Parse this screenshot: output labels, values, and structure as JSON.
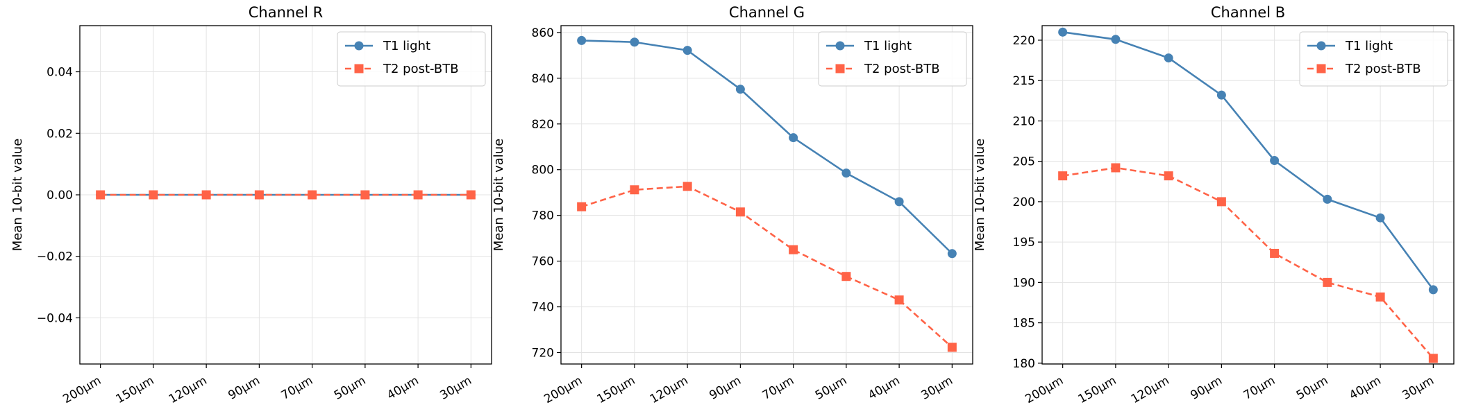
{
  "chart_data": [
    {
      "type": "line",
      "title": "Channel R",
      "ylabel": "Mean 10-bit value",
      "categories": [
        "200μm",
        "150μm",
        "120μm",
        "90μm",
        "70μm",
        "50μm",
        "40μm",
        "30μm"
      ],
      "ylim": [
        -0.055,
        0.055
      ],
      "yticks": [
        -0.04,
        -0.02,
        0.0,
        0.02,
        0.04
      ],
      "ytick_labels": [
        "−0.04",
        "−0.02",
        "0.00",
        "0.02",
        "0.04"
      ],
      "series": [
        {
          "name": "T1 light",
          "values": [
            0,
            0,
            0,
            0,
            0,
            0,
            0,
            0
          ]
        },
        {
          "name": "T2 post-BTB",
          "values": [
            0,
            0,
            0,
            0,
            0,
            0,
            0,
            0
          ]
        }
      ],
      "grid": true,
      "legend": "top-right"
    },
    {
      "type": "line",
      "title": "Channel G",
      "ylabel": "Mean 10-bit value",
      "categories": [
        "200μm",
        "150μm",
        "120μm",
        "90μm",
        "70μm",
        "50μm",
        "40μm",
        "30μm"
      ],
      "ylim": [
        715,
        863
      ],
      "yticks": [
        720,
        740,
        760,
        780,
        800,
        820,
        840,
        860
      ],
      "ytick_labels": [
        "720",
        "740",
        "760",
        "780",
        "800",
        "820",
        "840",
        "860"
      ],
      "series": [
        {
          "name": "T1 light",
          "values": [
            856.5,
            855.8,
            852.2,
            835.2,
            814.0,
            798.5,
            786.0,
            763.3
          ]
        },
        {
          "name": "T2 post-BTB",
          "values": [
            783.8,
            791.2,
            792.7,
            781.5,
            765.0,
            753.3,
            743.0,
            722.3
          ]
        }
      ],
      "grid": true,
      "legend": "top-right"
    },
    {
      "type": "line",
      "title": "Channel B",
      "ylabel": "Mean 10-bit value",
      "categories": [
        "200μm",
        "150μm",
        "120μm",
        "90μm",
        "70μm",
        "50μm",
        "40μm",
        "30μm"
      ],
      "ylim": [
        179.9,
        221.8
      ],
      "yticks": [
        180,
        185,
        190,
        195,
        200,
        205,
        210,
        215,
        220
      ],
      "ytick_labels": [
        "180",
        "185",
        "190",
        "195",
        "200",
        "205",
        "210",
        "215",
        "220"
      ],
      "series": [
        {
          "name": "T1 light",
          "values": [
            221.0,
            220.1,
            217.8,
            213.2,
            205.1,
            200.3,
            198.0,
            189.1
          ]
        },
        {
          "name": "T2 post-BTB",
          "values": [
            203.2,
            204.2,
            203.2,
            200.0,
            193.6,
            190.0,
            188.2,
            180.6
          ]
        }
      ],
      "grid": true,
      "legend": "top-right"
    }
  ],
  "colors": {
    "series1": "#4682b4",
    "series2": "#ff6347"
  }
}
